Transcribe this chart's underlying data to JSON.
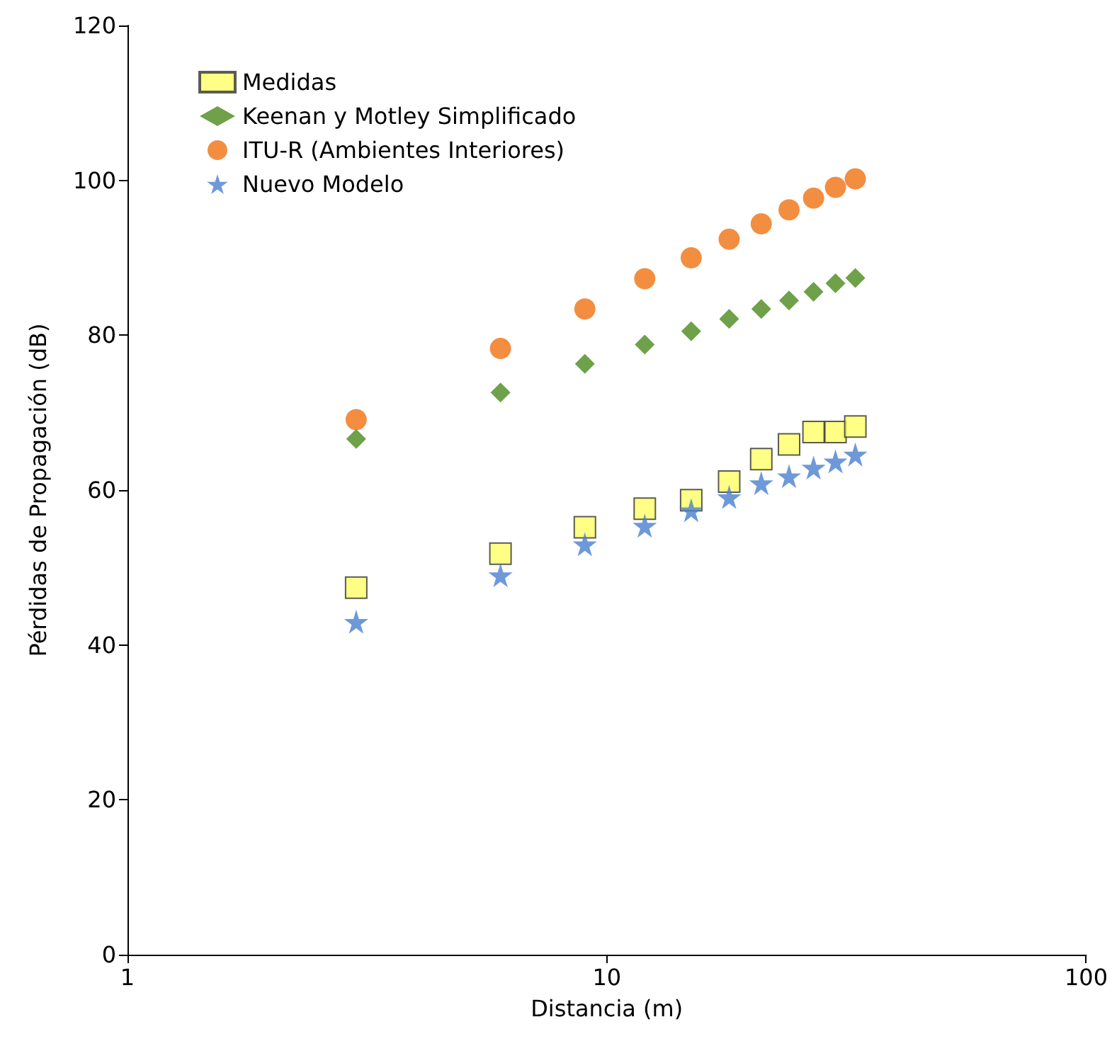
{
  "chart_data": {
    "type": "scatter",
    "xlabel": "Distancia (m)",
    "ylabel": "Pérdidas de Propagación (dB)",
    "log": "x",
    "xlim": [
      1,
      100
    ],
    "xticks": [
      1,
      10,
      100
    ],
    "ylim": [
      0,
      120
    ],
    "yticks": [
      0,
      20,
      40,
      60,
      80,
      100,
      120
    ],
    "grid": false,
    "legend": "top left",
    "x": [
      3,
      6,
      9,
      12,
      15,
      18,
      21,
      24,
      27,
      30,
      33
    ],
    "series": [
      {
        "name": "Medidas",
        "color": "#ffff66",
        "marker": "square",
        "values": [
          47.4,
          51.8,
          55.2,
          57.6,
          58.7,
          61.1,
          64.0,
          65.9,
          67.5,
          67.5,
          68.2
        ]
      },
      {
        "name": "Keenan y Motley Simplificado",
        "color": "#4a8a1c",
        "marker": "diamond",
        "values": [
          66.6,
          72.6,
          76.3,
          78.8,
          80.5,
          82.1,
          83.4,
          84.5,
          85.6,
          86.7,
          87.4
        ]
      },
      {
        "name": "ITU-R (Ambientes Interiores)",
        "color": "#f07010",
        "marker": "circle",
        "values": [
          69.1,
          78.3,
          83.4,
          87.3,
          90.0,
          92.4,
          94.4,
          96.2,
          97.7,
          99.1,
          100.2
        ]
      },
      {
        "name": "Nuevo Modelo",
        "color": "#4a7fd0",
        "marker": "star",
        "values": [
          43.0,
          49.0,
          53.0,
          55.4,
          57.4,
          59.1,
          60.9,
          61.8,
          62.9,
          63.7,
          64.6
        ]
      }
    ]
  }
}
